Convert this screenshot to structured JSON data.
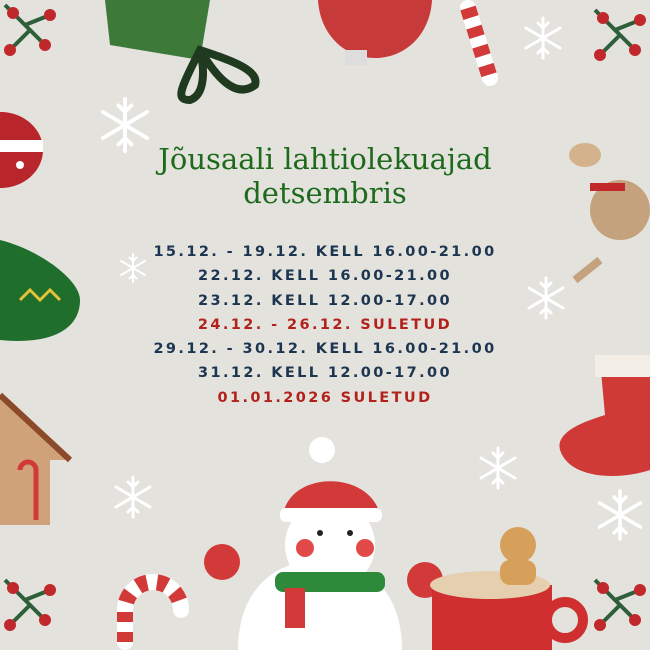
{
  "title": {
    "line1": "Jõusaali lahtiolekuajad",
    "line2": "detsembris"
  },
  "schedule": [
    {
      "text": "15.12. - 19.12. KELL 16.00-21.00",
      "closed": false
    },
    {
      "text": "22.12. KELL 16.00-21.00",
      "closed": false
    },
    {
      "text": "23.12. KELL 12.00-17.00",
      "closed": false
    },
    {
      "text": "24.12. - 26.12. SULETUD",
      "closed": true
    },
    {
      "text": "29.12. - 30.12. KELL 16.00-21.00",
      "closed": false
    },
    {
      "text": "31.12. KELL 12.00-17.00",
      "closed": false
    },
    {
      "text": "01.01.2026 SULETUD",
      "closed": true
    }
  ],
  "colors": {
    "background": "#e4e2dd",
    "title": "#1e6a1c",
    "open": "#1c3550",
    "closed": "#b2211a"
  },
  "decorations": [
    "holly-icon",
    "gift-icon",
    "ornament-icon",
    "candy-cane-icon",
    "snowflake-icon",
    "reindeer-icon",
    "stocking-icon",
    "gingerbread-house-icon",
    "snowman-icon",
    "cocoa-mug-icon",
    "gingerbread-man-icon"
  ]
}
